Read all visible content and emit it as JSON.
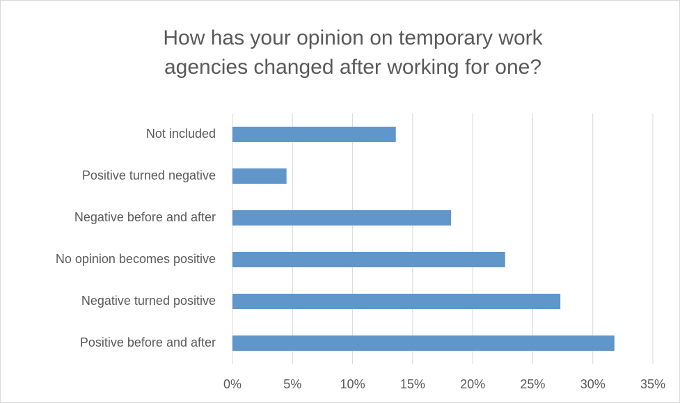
{
  "chart_data": {
    "type": "bar",
    "orientation": "horizontal",
    "title": [
      "How has your opinion on temporary work",
      "agencies changed after working for one?"
    ],
    "categories": [
      "Not included",
      "Positive turned negative",
      "Negative before and after",
      "No opinion becomes positive",
      "Negative turned positive",
      "Positive before and after"
    ],
    "values": [
      13.6,
      4.5,
      18.2,
      22.7,
      27.3,
      31.8
    ],
    "color": "#6096c9",
    "xlim": [
      0,
      35
    ],
    "xticks": [
      {
        "value": 0,
        "label": "0%"
      },
      {
        "value": 5,
        "label": "5%"
      },
      {
        "value": 10,
        "label": "10%"
      },
      {
        "value": 15,
        "label": "15%"
      },
      {
        "value": 20,
        "label": "20%"
      },
      {
        "value": 25,
        "label": "25%"
      },
      {
        "value": 30,
        "label": "30%"
      },
      {
        "value": 35,
        "label": "35%"
      }
    ],
    "grid": true
  }
}
